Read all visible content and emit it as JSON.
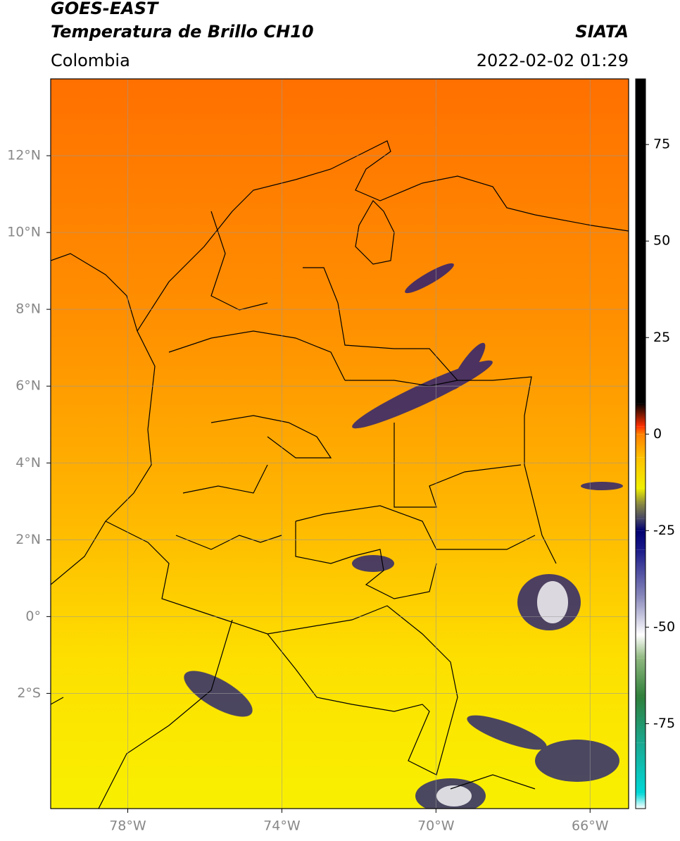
{
  "chart_data": {
    "type": "map",
    "title": "GOES-EAST",
    "subtitle": "Temperatura de Brillo CH10",
    "source": "SIATA",
    "region": "Colombia",
    "datetime": "2022-02-02 01:29",
    "xlim": [
      -80,
      -65
    ],
    "ylim": [
      -5,
      14
    ],
    "xticks": [
      {
        "value": -78,
        "label": "78°W"
      },
      {
        "value": -74,
        "label": "74°W"
      },
      {
        "value": -70,
        "label": "70°W"
      },
      {
        "value": -66,
        "label": "66°W"
      }
    ],
    "yticks": [
      {
        "value": 12,
        "label": "12°N"
      },
      {
        "value": 10,
        "label": "10°N"
      },
      {
        "value": 8,
        "label": "8°N"
      },
      {
        "value": 6,
        "label": "6°N"
      },
      {
        "value": 4,
        "label": "4°N"
      },
      {
        "value": 2,
        "label": "2°N"
      },
      {
        "value": 0,
        "label": "0°"
      },
      {
        "value": -2,
        "label": "2°S"
      }
    ],
    "grid": true,
    "colorbar": {
      "clim": [
        -97,
        92
      ],
      "ticks": [
        75,
        50,
        25,
        0,
        -25,
        -50,
        -75
      ],
      "colormap": [
        {
          "value": -97,
          "color": "#ffffff"
        },
        {
          "value": -93,
          "color": "#00d8d8"
        },
        {
          "value": -80,
          "color": "#1aa890"
        },
        {
          "value": -68,
          "color": "#2f7f3a"
        },
        {
          "value": -58,
          "color": "#8fb87f"
        },
        {
          "value": -52,
          "color": "#ffffff"
        },
        {
          "value": -42,
          "color": "#8888bb"
        },
        {
          "value": -30,
          "color": "#1a1a8a"
        },
        {
          "value": -25,
          "color": "#000070"
        },
        {
          "value": -22,
          "color": "#444466"
        },
        {
          "value": -18,
          "color": "#8a8a40"
        },
        {
          "value": -14,
          "color": "#f0f000"
        },
        {
          "value": -6,
          "color": "#ffc000"
        },
        {
          "value": 0,
          "color": "#ff8000"
        },
        {
          "value": 2,
          "color": "#ff3000"
        },
        {
          "value": 8,
          "color": "#000000"
        }
      ]
    }
  }
}
